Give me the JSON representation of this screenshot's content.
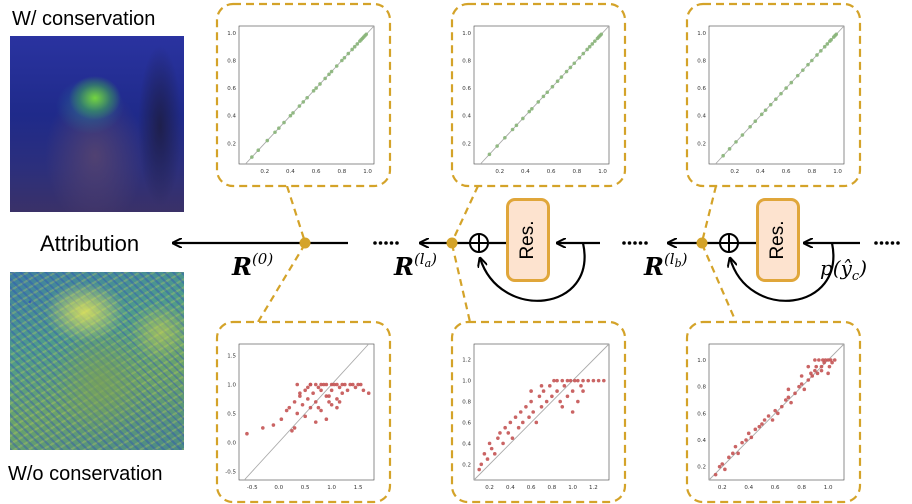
{
  "labels": {
    "with_conservation": "W/ conservation",
    "without_conservation": "W/o conservation",
    "attribution": "Attribution",
    "res_block": "Res.",
    "r0": "R",
    "r0_sup": "(0)",
    "rla": "R",
    "rla_sup": "(l",
    "rla_sub": "a",
    "rlb": "R",
    "rlb_sup": "(l",
    "rlb_sub": "b",
    "prob_prefix": "p(ŷ",
    "prob_sub": "c",
    "prob_suffix": ")"
  },
  "colors": {
    "accent": "#d4a329",
    "res_fill": "#fde3cf",
    "res_border": "#e0a63a",
    "scatter_top": "#8ab57a",
    "scatter_bottom": "#c45353",
    "identity_line": "#aaaaaa"
  },
  "chart_data": [
    {
      "type": "scatter",
      "id": "top-1",
      "color": "#8ab57a",
      "xlim": [
        0.0,
        1.05
      ],
      "ylim": [
        0.05,
        1.05
      ],
      "xticks": [
        "0.2",
        "0.4",
        "0.6",
        "0.8",
        "1.0"
      ],
      "yticks": [
        "0.2",
        "0.4",
        "0.6",
        "0.8",
        "1.0"
      ],
      "identity_line": true,
      "x": [
        0.1,
        0.15,
        0.22,
        0.28,
        0.31,
        0.35,
        0.4,
        0.42,
        0.47,
        0.5,
        0.53,
        0.58,
        0.6,
        0.63,
        0.67,
        0.7,
        0.72,
        0.76,
        0.8,
        0.82,
        0.85,
        0.88,
        0.9,
        0.92,
        0.94,
        0.95,
        0.96,
        0.97,
        0.98,
        0.99
      ],
      "y": [
        0.1,
        0.15,
        0.22,
        0.28,
        0.31,
        0.35,
        0.4,
        0.42,
        0.47,
        0.5,
        0.53,
        0.58,
        0.6,
        0.63,
        0.67,
        0.7,
        0.72,
        0.76,
        0.8,
        0.82,
        0.85,
        0.88,
        0.9,
        0.92,
        0.94,
        0.95,
        0.96,
        0.97,
        0.98,
        0.99
      ]
    },
    {
      "type": "scatter",
      "id": "top-2",
      "color": "#8ab57a",
      "xlim": [
        0.0,
        1.05
      ],
      "ylim": [
        0.05,
        1.05
      ],
      "xticks": [
        "0.2",
        "0.4",
        "0.6",
        "0.8",
        "1.0"
      ],
      "yticks": [
        "0.2",
        "0.4",
        "0.6",
        "0.8",
        "1.0"
      ],
      "identity_line": true,
      "x": [
        0.12,
        0.18,
        0.24,
        0.3,
        0.33,
        0.38,
        0.43,
        0.45,
        0.5,
        0.54,
        0.57,
        0.61,
        0.65,
        0.68,
        0.72,
        0.75,
        0.78,
        0.82,
        0.85,
        0.88,
        0.9,
        0.92,
        0.94,
        0.96,
        0.97,
        0.98,
        0.99
      ],
      "y": [
        0.12,
        0.18,
        0.24,
        0.3,
        0.33,
        0.38,
        0.43,
        0.45,
        0.5,
        0.54,
        0.57,
        0.61,
        0.65,
        0.68,
        0.72,
        0.75,
        0.78,
        0.82,
        0.85,
        0.88,
        0.9,
        0.92,
        0.94,
        0.96,
        0.97,
        0.98,
        0.99
      ]
    },
    {
      "type": "scatter",
      "id": "top-3",
      "color": "#8ab57a",
      "xlim": [
        0.0,
        1.05
      ],
      "ylim": [
        0.05,
        1.05
      ],
      "xticks": [
        "0.2",
        "0.4",
        "0.6",
        "0.8",
        "1.0"
      ],
      "yticks": [
        "0.2",
        "0.4",
        "0.6",
        "0.8",
        "1.0"
      ],
      "identity_line": true,
      "x": [
        0.11,
        0.16,
        0.21,
        0.26,
        0.32,
        0.36,
        0.41,
        0.44,
        0.48,
        0.52,
        0.56,
        0.6,
        0.64,
        0.69,
        0.73,
        0.77,
        0.8,
        0.84,
        0.87,
        0.9,
        0.92,
        0.94,
        0.95,
        0.97,
        0.98,
        0.99
      ],
      "y": [
        0.11,
        0.16,
        0.21,
        0.26,
        0.32,
        0.36,
        0.41,
        0.44,
        0.48,
        0.52,
        0.56,
        0.6,
        0.64,
        0.69,
        0.73,
        0.77,
        0.8,
        0.84,
        0.87,
        0.9,
        0.92,
        0.94,
        0.95,
        0.97,
        0.98,
        0.99
      ]
    },
    {
      "type": "scatter",
      "id": "bottom-1",
      "color": "#c45353",
      "xlim": [
        -0.75,
        1.8
      ],
      "ylim": [
        -0.65,
        1.7
      ],
      "xticks": [
        "-0.5",
        "0.0",
        "0.5",
        "1.0",
        "1.5"
      ],
      "yticks": [
        "-0.5",
        "0.0",
        "0.5",
        "1.0",
        "1.5"
      ],
      "identity_line": true,
      "x": [
        -0.6,
        -0.3,
        -0.1,
        0.05,
        0.15,
        0.2,
        0.25,
        0.3,
        0.35,
        0.4,
        0.45,
        0.5,
        0.55,
        0.6,
        0.6,
        0.65,
        0.7,
        0.7,
        0.75,
        0.8,
        0.8,
        0.85,
        0.9,
        0.9,
        0.95,
        1.0,
        1.0,
        1.05,
        1.1,
        1.1,
        1.15,
        1.2,
        1.25,
        1.3,
        1.35,
        1.4,
        1.45,
        1.5,
        1.55,
        1.6,
        1.7,
        0.3,
        0.5,
        0.7,
        0.9,
        1.1,
        0.4,
        0.6,
        0.8,
        1.0,
        1.2,
        0.35,
        0.55,
        0.75,
        0.95,
        1.15
      ],
      "y": [
        0.15,
        0.25,
        0.3,
        0.4,
        0.55,
        0.6,
        0.2,
        0.7,
        0.5,
        0.8,
        0.65,
        0.9,
        0.75,
        0.6,
        1.0,
        0.85,
        1.0,
        0.7,
        0.95,
        1.0,
        0.55,
        1.0,
        0.8,
        1.0,
        0.7,
        1.0,
        0.9,
        1.0,
        0.75,
        1.0,
        0.95,
        1.0,
        1.0,
        0.9,
        1.0,
        1.0,
        0.95,
        1.0,
        1.0,
        0.9,
        0.85,
        0.25,
        0.45,
        0.35,
        0.4,
        0.6,
        0.85,
        1.0,
        0.9,
        0.65,
        0.85,
        1.0,
        0.95,
        0.6,
        0.8,
        0.7
      ]
    },
    {
      "type": "scatter",
      "id": "bottom-2",
      "color": "#c45353",
      "xlim": [
        0.05,
        1.35
      ],
      "ylim": [
        0.05,
        1.35
      ],
      "xticks": [
        "0.2",
        "0.4",
        "0.6",
        "0.8",
        "1.0",
        "1.2"
      ],
      "yticks": [
        "0.2",
        "0.4",
        "0.6",
        "0.8",
        "1.0",
        "1.2"
      ],
      "identity_line": true,
      "x": [
        0.1,
        0.12,
        0.15,
        0.18,
        0.2,
        0.22,
        0.25,
        0.28,
        0.3,
        0.33,
        0.35,
        0.38,
        0.4,
        0.42,
        0.45,
        0.48,
        0.5,
        0.52,
        0.55,
        0.58,
        0.6,
        0.62,
        0.65,
        0.68,
        0.7,
        0.72,
        0.75,
        0.78,
        0.8,
        0.82,
        0.85,
        0.88,
        0.9,
        0.92,
        0.95,
        0.98,
        1.0,
        1.02,
        1.05,
        1.08,
        1.1,
        1.15,
        1.2,
        1.25,
        1.3,
        0.9,
        0.95,
        1.0,
        1.05,
        1.1,
        0.85,
        0.7,
        0.6
      ],
      "y": [
        0.15,
        0.2,
        0.3,
        0.25,
        0.4,
        0.35,
        0.3,
        0.45,
        0.5,
        0.4,
        0.55,
        0.5,
        0.6,
        0.45,
        0.65,
        0.55,
        0.7,
        0.6,
        0.75,
        0.65,
        0.8,
        0.7,
        0.6,
        0.85,
        0.75,
        0.9,
        0.8,
        0.95,
        0.85,
        1.0,
        0.9,
        0.8,
        1.0,
        0.95,
        1.0,
        1.0,
        0.9,
        1.0,
        1.0,
        0.95,
        1.0,
        1.0,
        1.0,
        1.0,
        1.0,
        0.75,
        0.85,
        0.7,
        0.8,
        0.9,
        1.0,
        0.95,
        0.9
      ]
    },
    {
      "type": "scatter",
      "id": "bottom-3",
      "color": "#c45353",
      "xlim": [
        0.1,
        1.12
      ],
      "ylim": [
        0.1,
        1.12
      ],
      "xticks": [
        "0.2",
        "0.4",
        "0.6",
        "0.8",
        "1.0"
      ],
      "yticks": [
        "0.2",
        "0.4",
        "0.6",
        "0.8",
        "1.0"
      ],
      "identity_line": true,
      "x": [
        0.15,
        0.18,
        0.2,
        0.22,
        0.25,
        0.28,
        0.3,
        0.32,
        0.35,
        0.38,
        0.4,
        0.42,
        0.45,
        0.48,
        0.5,
        0.52,
        0.55,
        0.58,
        0.6,
        0.62,
        0.65,
        0.68,
        0.7,
        0.72,
        0.75,
        0.78,
        0.8,
        0.82,
        0.85,
        0.87,
        0.88,
        0.9,
        0.91,
        0.92,
        0.93,
        0.95,
        0.96,
        0.97,
        0.98,
        1.0,
        1.01,
        1.02,
        1.03,
        1.05,
        0.85,
        0.9,
        0.95,
        1.0,
        0.7,
        0.8
      ],
      "y": [
        0.14,
        0.2,
        0.22,
        0.18,
        0.27,
        0.3,
        0.35,
        0.3,
        0.38,
        0.4,
        0.45,
        0.42,
        0.48,
        0.5,
        0.52,
        0.55,
        0.58,
        0.55,
        0.62,
        0.6,
        0.65,
        0.7,
        0.72,
        0.68,
        0.75,
        0.8,
        0.82,
        0.78,
        0.85,
        0.9,
        0.88,
        0.92,
        0.95,
        0.9,
        1.0,
        0.95,
        1.0,
        0.98,
        1.0,
        1.0,
        0.95,
        1.0,
        0.98,
        1.0,
        0.95,
        1.0,
        0.92,
        0.9,
        0.78,
        0.88
      ]
    }
  ]
}
